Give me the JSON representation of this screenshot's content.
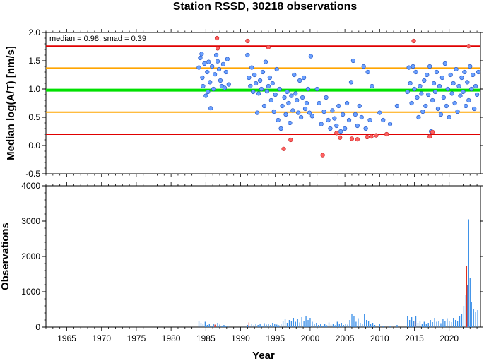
{
  "title": "Station RSSD, 30218 observations",
  "annotation": "median = 0.98, smad = 0.39",
  "colors": {
    "median_line": "#00e000",
    "one_smad_line": "#ffa500",
    "two_smad_line": "#e00000",
    "point_normal": "#6aa0ff",
    "point_outlier": "#ff6060",
    "bar_normal": "#3a8fe8",
    "bar_highlight": "#e03020"
  },
  "chart_data": [
    {
      "type": "scatter",
      "name": "median-log-panel",
      "xlabel": "",
      "ylabel": "Median log(A/T) [nm/s]",
      "xlim": [
        1962,
        2024.5
      ],
      "ylim": [
        -0.5,
        2.0
      ],
      "yticks": [
        -0.5,
        0.0,
        0.5,
        1.0,
        1.5,
        2.0
      ],
      "ytick_labels": [
        "-0.5",
        "0.0",
        "0.5",
        "1.0",
        "1.5",
        "2.0"
      ],
      "median": 0.98,
      "smad": 0.39,
      "reference_lines": [
        {
          "y": 0.98,
          "role": "median"
        },
        {
          "y": 1.37,
          "role": "median+smad"
        },
        {
          "y": 0.59,
          "role": "median-smad"
        },
        {
          "y": 1.76,
          "role": "median+2smad"
        },
        {
          "y": 0.2,
          "role": "median-2smad"
        }
      ],
      "points": [
        [
          1984.0,
          1.38
        ],
        [
          1984.2,
          1.55
        ],
        [
          1984.4,
          1.62
        ],
        [
          1984.5,
          1.2
        ],
        [
          1984.6,
          1.05
        ],
        [
          1984.8,
          1.45
        ],
        [
          1985.0,
          0.88
        ],
        [
          1985.2,
          1.3
        ],
        [
          1985.3,
          0.95
        ],
        [
          1985.4,
          1.48
        ],
        [
          1985.6,
          1.12
        ],
        [
          1985.7,
          0.66
        ],
        [
          1985.9,
          1.4
        ],
        [
          1986.1,
          1.0
        ],
        [
          1986.3,
          1.26
        ],
        [
          1986.5,
          1.6
        ],
        [
          1986.7,
          1.49
        ],
        [
          1986.9,
          1.35
        ],
        [
          1987.1,
          1.15
        ],
        [
          1987.3,
          1.05
        ],
        [
          1987.5,
          1.44
        ],
        [
          1987.7,
          1.02
        ],
        [
          1987.9,
          1.3
        ],
        [
          1988.1,
          1.53
        ],
        [
          1988.3,
          1.08
        ],
        [
          1991.0,
          1.6
        ],
        [
          1991.2,
          1.2
        ],
        [
          1991.4,
          1.05
        ],
        [
          1991.6,
          1.38
        ],
        [
          1991.8,
          0.95
        ],
        [
          1992.0,
          1.25
        ],
        [
          1992.2,
          1.1
        ],
        [
          1992.4,
          0.58
        ],
        [
          1992.6,
          0.92
        ],
        [
          1992.8,
          1.15
        ],
        [
          1993.0,
          1.0
        ],
        [
          1993.2,
          1.3
        ],
        [
          1993.4,
          0.7
        ],
        [
          1993.6,
          1.48
        ],
        [
          1993.8,
          0.96
        ],
        [
          1994.0,
          1.05
        ],
        [
          1994.2,
          1.2
        ],
        [
          1994.4,
          0.8
        ],
        [
          1994.6,
          1.1
        ],
        [
          1994.8,
          0.6
        ],
        [
          1995.0,
          0.9
        ],
        [
          1995.2,
          1.35
        ],
        [
          1995.4,
          0.45
        ],
        [
          1995.6,
          1.0
        ],
        [
          1995.8,
          0.3
        ],
        [
          1996.0,
          0.7
        ],
        [
          1996.3,
          0.85
        ],
        [
          1996.5,
          0.55
        ],
        [
          1996.7,
          0.95
        ],
        [
          1996.9,
          0.75
        ],
        [
          1997.1,
          0.4
        ],
        [
          1997.3,
          0.88
        ],
        [
          1997.5,
          0.62
        ],
        [
          1997.7,
          1.25
        ],
        [
          1997.9,
          0.92
        ],
        [
          1998.1,
          0.8
        ],
        [
          1998.3,
          0.58
        ],
        [
          1998.5,
          1.15
        ],
        [
          1998.7,
          0.5
        ],
        [
          1998.9,
          0.85
        ],
        [
          1999.1,
          1.2
        ],
        [
          1999.3,
          0.65
        ],
        [
          1999.5,
          0.75
        ],
        [
          1999.7,
          1.0
        ],
        [
          1999.9,
          0.58
        ],
        [
          2000.1,
          1.58
        ],
        [
          2000.3,
          0.52
        ],
        [
          2001.0,
          1.0
        ],
        [
          2001.3,
          0.75
        ],
        [
          2001.6,
          0.38
        ],
        [
          2002.0,
          0.6
        ],
        [
          2002.3,
          0.85
        ],
        [
          2002.6,
          0.45
        ],
        [
          2002.9,
          0.3
        ],
        [
          2003.2,
          0.62
        ],
        [
          2003.5,
          0.48
        ],
        [
          2003.8,
          0.35
        ],
        [
          2004.1,
          0.7
        ],
        [
          2004.4,
          0.25
        ],
        [
          2004.7,
          0.55
        ],
        [
          2005.0,
          0.3
        ],
        [
          2005.3,
          0.75
        ],
        [
          2005.6,
          0.45
        ],
        [
          2005.9,
          1.12
        ],
        [
          2006.2,
          1.5
        ],
        [
          2006.5,
          0.55
        ],
        [
          2006.8,
          0.35
        ],
        [
          2007.1,
          0.7
        ],
        [
          2007.4,
          0.5
        ],
        [
          2007.7,
          1.4
        ],
        [
          2008.0,
          0.3
        ],
        [
          2008.3,
          1.3
        ],
        [
          2008.6,
          0.45
        ],
        [
          2008.9,
          1.05
        ],
        [
          2010.0,
          0.58
        ],
        [
          2010.5,
          0.45
        ],
        [
          2011.5,
          0.38
        ],
        [
          2012.5,
          0.7
        ],
        [
          2014.0,
          0.95
        ],
        [
          2014.2,
          1.38
        ],
        [
          2014.4,
          1.1
        ],
        [
          2014.6,
          0.75
        ],
        [
          2014.8,
          1.4
        ],
        [
          2015.0,
          1.0
        ],
        [
          2015.2,
          1.3
        ],
        [
          2015.4,
          0.85
        ],
        [
          2015.6,
          0.5
        ],
        [
          2015.8,
          1.05
        ],
        [
          2016.0,
          0.92
        ],
        [
          2016.2,
          0.6
        ],
        [
          2016.4,
          1.15
        ],
        [
          2016.6,
          0.7
        ],
        [
          2016.8,
          1.25
        ],
        [
          2017.0,
          0.9
        ],
        [
          2017.2,
          1.4
        ],
        [
          2017.4,
          0.25
        ],
        [
          2017.6,
          0.8
        ],
        [
          2017.8,
          1.1
        ],
        [
          2018.0,
          0.95
        ],
        [
          2018.2,
          1.3
        ],
        [
          2018.4,
          0.65
        ],
        [
          2018.6,
          1.05
        ],
        [
          2018.8,
          0.55
        ],
        [
          2019.0,
          1.2
        ],
        [
          2019.2,
          0.85
        ],
        [
          2019.4,
          1.45
        ],
        [
          2019.6,
          0.7
        ],
        [
          2019.8,
          1.0
        ],
        [
          2020.0,
          0.5
        ],
        [
          2020.2,
          1.25
        ],
        [
          2020.4,
          0.92
        ],
        [
          2020.6,
          1.1
        ],
        [
          2020.8,
          0.75
        ],
        [
          2021.0,
          1.35
        ],
        [
          2021.2,
          0.6
        ],
        [
          2021.4,
          1.05
        ],
        [
          2021.6,
          0.88
        ],
        [
          2021.8,
          1.2
        ],
        [
          2022.0,
          0.95
        ],
        [
          2022.2,
          1.3
        ],
        [
          2022.4,
          0.7
        ],
        [
          2022.6,
          1.12
        ],
        [
          2022.8,
          0.8
        ],
        [
          2023.0,
          1.4
        ],
        [
          2023.2,
          1.0
        ],
        [
          2023.4,
          1.25
        ],
        [
          2023.6,
          0.65
        ],
        [
          2023.8,
          1.05
        ],
        [
          2024.0,
          0.9
        ],
        [
          2024.2,
          1.3
        ]
      ],
      "outliers": [
        [
          1986.6,
          1.9
        ],
        [
          1986.7,
          1.72
        ],
        [
          1991.0,
          1.85
        ],
        [
          1994.0,
          1.74
        ],
        [
          1996.2,
          -0.06
        ],
        [
          1997.2,
          0.1
        ],
        [
          2001.8,
          -0.17
        ],
        [
          2003.8,
          0.22
        ],
        [
          2004.3,
          0.14
        ],
        [
          2006.0,
          0.12
        ],
        [
          2006.8,
          0.11
        ],
        [
          2008.2,
          0.15
        ],
        [
          2008.8,
          0.16
        ],
        [
          2009.5,
          0.18
        ],
        [
          2011.0,
          0.2
        ],
        [
          2014.9,
          1.85
        ],
        [
          2017.2,
          0.16
        ],
        [
          2017.6,
          0.24
        ],
        [
          2022.8,
          1.76
        ]
      ]
    },
    {
      "type": "bar",
      "name": "observations-panel",
      "xlabel": "Year",
      "ylabel": "Observations",
      "xlim": [
        1962,
        2024.5
      ],
      "ylim": [
        0,
        4000
      ],
      "yticks": [
        0,
        1000,
        2000,
        3000,
        4000
      ],
      "ytick_labels": [
        "0",
        "1000",
        "2000",
        "3000",
        "4000"
      ],
      "xticks": [
        1965,
        1970,
        1975,
        1980,
        1985,
        1990,
        1995,
        2000,
        2005,
        2010,
        2015,
        2020
      ],
      "xtick_labels": [
        "1965",
        "1970",
        "1975",
        "1980",
        "1985",
        "1990",
        "1995",
        "2000",
        "2005",
        "2010",
        "2015",
        "2020"
      ],
      "bars": [
        [
          1984.0,
          180
        ],
        [
          1984.3,
          120
        ],
        [
          1984.6,
          90
        ],
        [
          1984.9,
          150
        ],
        [
          1985.2,
          60
        ],
        [
          1985.5,
          100
        ],
        [
          1985.8,
          40
        ],
        [
          1986.1,
          80
        ],
        [
          1986.4,
          50
        ],
        [
          1986.7,
          120
        ],
        [
          1987.0,
          70
        ],
        [
          1987.3,
          40
        ],
        [
          1987.6,
          60
        ],
        [
          1987.9,
          30
        ],
        [
          1988.2,
          20
        ],
        [
          1990.5,
          20
        ],
        [
          1991.0,
          60
        ],
        [
          1991.3,
          40
        ],
        [
          1991.6,
          90
        ],
        [
          1991.9,
          50
        ],
        [
          1992.2,
          100
        ],
        [
          1992.5,
          60
        ],
        [
          1992.8,
          80
        ],
        [
          1993.1,
          40
        ],
        [
          1993.4,
          110
        ],
        [
          1993.7,
          70
        ],
        [
          1994.0,
          90
        ],
        [
          1994.3,
          60
        ],
        [
          1994.6,
          120
        ],
        [
          1994.9,
          80
        ],
        [
          1995.2,
          70
        ],
        [
          1995.5,
          50
        ],
        [
          1995.8,
          100
        ],
        [
          1996.1,
          180
        ],
        [
          1996.4,
          240
        ],
        [
          1996.7,
          120
        ],
        [
          1997.0,
          200
        ],
        [
          1997.3,
          160
        ],
        [
          1997.6,
          260
        ],
        [
          1997.9,
          150
        ],
        [
          1998.2,
          220
        ],
        [
          1998.5,
          130
        ],
        [
          1998.8,
          280
        ],
        [
          1999.1,
          170
        ],
        [
          1999.4,
          300
        ],
        [
          1999.7,
          200
        ],
        [
          2000.0,
          260
        ],
        [
          2000.3,
          150
        ],
        [
          2000.6,
          90
        ],
        [
          2000.9,
          120
        ],
        [
          2001.2,
          60
        ],
        [
          2001.5,
          100
        ],
        [
          2001.8,
          40
        ],
        [
          2002.1,
          80
        ],
        [
          2002.4,
          50
        ],
        [
          2002.7,
          130
        ],
        [
          2003.0,
          70
        ],
        [
          2003.3,
          90
        ],
        [
          2003.6,
          50
        ],
        [
          2003.9,
          150
        ],
        [
          2004.2,
          80
        ],
        [
          2004.5,
          120
        ],
        [
          2004.8,
          60
        ],
        [
          2005.1,
          100
        ],
        [
          2005.4,
          70
        ],
        [
          2005.7,
          200
        ],
        [
          2006.0,
          380
        ],
        [
          2006.3,
          300
        ],
        [
          2006.6,
          150
        ],
        [
          2006.9,
          250
        ],
        [
          2007.2,
          120
        ],
        [
          2007.5,
          90
        ],
        [
          2007.8,
          380
        ],
        [
          2008.1,
          200
        ],
        [
          2008.4,
          160
        ],
        [
          2008.7,
          100
        ],
        [
          2009.0,
          120
        ],
        [
          2009.3,
          60
        ],
        [
          2010.0,
          80
        ],
        [
          2010.5,
          40
        ],
        [
          2011.5,
          30
        ],
        [
          2012.5,
          60
        ],
        [
          2014.0,
          320
        ],
        [
          2014.3,
          200
        ],
        [
          2014.6,
          280
        ],
        [
          2014.9,
          160
        ],
        [
          2015.2,
          300
        ],
        [
          2015.5,
          120
        ],
        [
          2015.8,
          180
        ],
        [
          2016.1,
          90
        ],
        [
          2016.4,
          150
        ],
        [
          2016.7,
          80
        ],
        [
          2017.0,
          120
        ],
        [
          2017.3,
          200
        ],
        [
          2017.6,
          140
        ],
        [
          2017.9,
          260
        ],
        [
          2018.2,
          150
        ],
        [
          2018.5,
          180
        ],
        [
          2018.8,
          110
        ],
        [
          2019.1,
          220
        ],
        [
          2019.4,
          160
        ],
        [
          2019.7,
          250
        ],
        [
          2020.0,
          180
        ],
        [
          2020.3,
          140
        ],
        [
          2020.6,
          260
        ],
        [
          2020.9,
          200
        ],
        [
          2021.2,
          160
        ],
        [
          2021.5,
          300
        ],
        [
          2021.8,
          380
        ],
        [
          2022.1,
          600
        ],
        [
          2022.4,
          900
        ],
        [
          2022.6,
          1200
        ],
        [
          2022.8,
          3050
        ],
        [
          2023.0,
          1400
        ],
        [
          2023.2,
          700
        ],
        [
          2023.5,
          500
        ],
        [
          2023.8,
          420
        ],
        [
          2024.1,
          480
        ]
      ],
      "highlight_bars": [
        [
          1986.3,
          70
        ],
        [
          1991.2,
          130
        ],
        [
          2015.1,
          160
        ],
        [
          2022.5,
          1720
        ],
        [
          2022.7,
          1200
        ]
      ]
    }
  ]
}
